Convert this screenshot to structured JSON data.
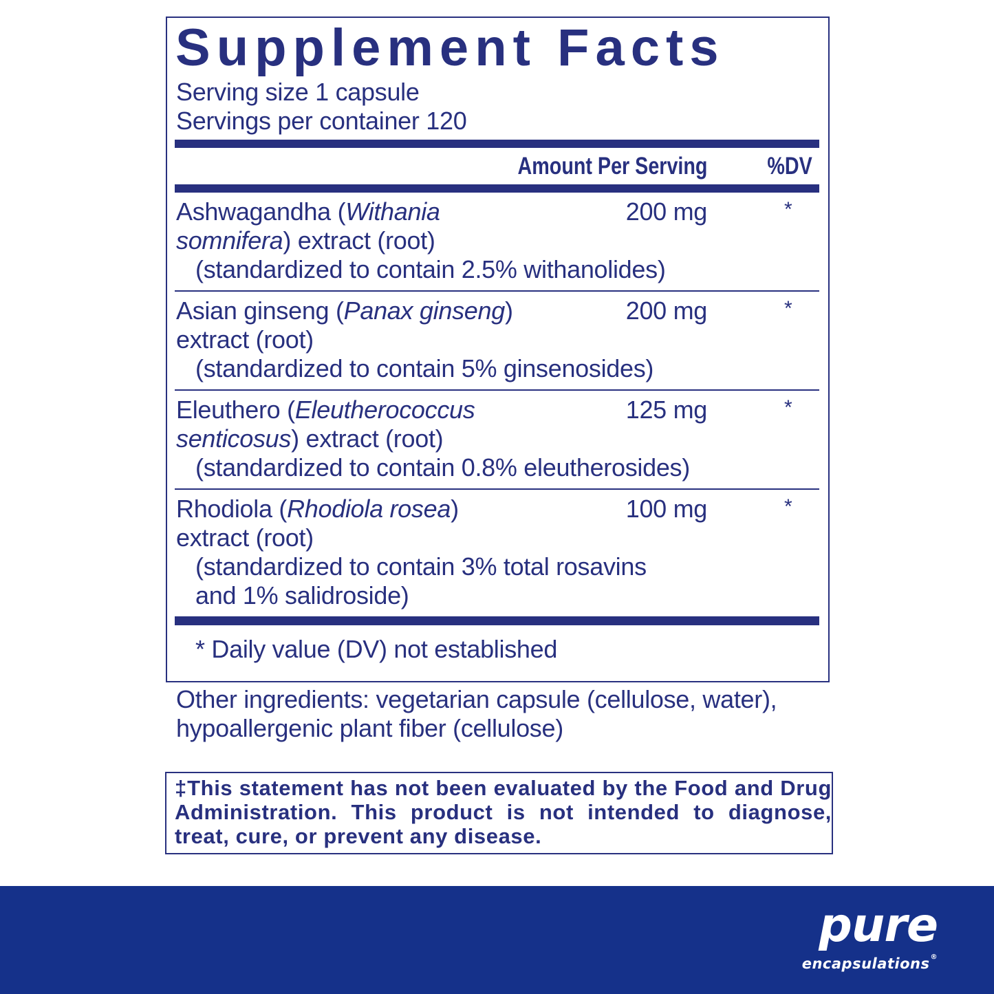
{
  "title": "Supplement Facts",
  "serving_size": "Serving size  1 capsule",
  "servings_per_container": "Servings per container  120",
  "header": {
    "amount": "Amount Per Serving",
    "dv": "%DV"
  },
  "rows": [
    {
      "amount": "200 mg",
      "dv": "*",
      "lines": [
        {
          "indent": false,
          "parts": [
            {
              "t": "Ashwagandha (",
              "i": false
            },
            {
              "t": "Withania",
              "i": true
            }
          ]
        },
        {
          "indent": false,
          "parts": [
            {
              "t": "somnifera",
              "i": true
            },
            {
              "t": ") extract (root)",
              "i": false
            }
          ]
        },
        {
          "indent": true,
          "parts": [
            {
              "t": "(standardized to contain 2.5% withanolides)",
              "i": false
            }
          ]
        }
      ]
    },
    {
      "amount": "200 mg",
      "dv": "*",
      "lines": [
        {
          "indent": false,
          "parts": [
            {
              "t": "Asian ginseng (",
              "i": false
            },
            {
              "t": "Panax ginseng",
              "i": true
            },
            {
              "t": ")",
              "i": false
            }
          ]
        },
        {
          "indent": false,
          "parts": [
            {
              "t": "extract (root)",
              "i": false
            }
          ]
        },
        {
          "indent": true,
          "parts": [
            {
              "t": "(standardized to contain 5% ginsenosides)",
              "i": false
            }
          ]
        }
      ]
    },
    {
      "amount": "125 mg",
      "dv": "*",
      "lines": [
        {
          "indent": false,
          "parts": [
            {
              "t": "Eleuthero (",
              "i": false
            },
            {
              "t": "Eleutherococcus",
              "i": true
            }
          ]
        },
        {
          "indent": false,
          "parts": [
            {
              "t": "senticosus",
              "i": true
            },
            {
              "t": ") extract (root)",
              "i": false
            }
          ]
        },
        {
          "indent": true,
          "parts": [
            {
              "t": "(standardized to contain 0.8% eleutherosides)",
              "i": false
            }
          ]
        }
      ]
    },
    {
      "amount": "100 mg",
      "dv": "*",
      "lines": [
        {
          "indent": false,
          "parts": [
            {
              "t": "Rhodiola (",
              "i": false
            },
            {
              "t": "Rhodiola rosea",
              "i": true
            },
            {
              "t": ")",
              "i": false
            }
          ]
        },
        {
          "indent": false,
          "parts": [
            {
              "t": "extract (root)",
              "i": false
            }
          ]
        },
        {
          "indent": true,
          "parts": [
            {
              "t": "(standardized to contain 3% total rosavins",
              "i": false
            }
          ]
        },
        {
          "indent": true,
          "parts": [
            {
              "t": "and 1% salidroside)",
              "i": false
            }
          ]
        }
      ]
    }
  ],
  "footnote": "* Daily value (DV) not established",
  "other_ingredients": [
    "Other ingredients: vegetarian capsule (cellulose, water),",
    "hypoallergenic plant fiber (cellulose)"
  ],
  "disclaimer": "‡This statement has not been evaluated by the Food and Drug Administration. This product is not intended to diagnose, treat, cure, or prevent any disease.",
  "brand": {
    "name": "pure",
    "sub": "encapsulations",
    "mark": "®"
  },
  "colors": {
    "ink": "#28307f",
    "banner": "#15318a"
  }
}
